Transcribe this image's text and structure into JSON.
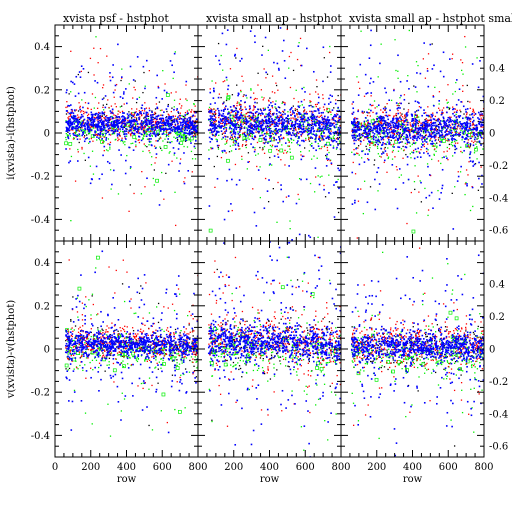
{
  "chart_data": [
    {
      "type": "scatter",
      "title": "xvista psf - hstphot",
      "xlabel": "",
      "ylabel": "i(xvista)-i(hstphot)",
      "xlim": [
        0,
        800
      ],
      "ylim": [
        -0.5,
        0.5
      ],
      "xticks": [],
      "yticks": [
        "-0.4",
        "-0.2",
        "0",
        "0.2",
        "0.4"
      ],
      "center": 0.04,
      "spread": 0.035,
      "slope": -2e-05,
      "series": [
        {
          "color": "#ff0000"
        },
        {
          "color": "#00ee00"
        },
        {
          "color": "#0000ff"
        },
        {
          "color": "#000000"
        }
      ]
    },
    {
      "type": "scatter",
      "title": "xvista small ap - hstphot",
      "xlabel": "",
      "ylabel": "",
      "xlim": [
        0,
        800
      ],
      "ylim": [
        -0.5,
        0.5
      ],
      "xticks": [],
      "yticks": [],
      "center": 0.04,
      "spread": 0.05,
      "slope": -3e-05,
      "series": [
        {
          "color": "#ff0000"
        },
        {
          "color": "#00ee00"
        },
        {
          "color": "#0000ff"
        },
        {
          "color": "#000000"
        }
      ]
    },
    {
      "type": "scatter",
      "title": "xvista small ap - hstphot small ap",
      "xlabel": "",
      "ylabel": "",
      "xlim": [
        0,
        800
      ],
      "ylim": [
        -0.5,
        0.5
      ],
      "xticks": [],
      "yticks": [],
      "right_yticks": [
        "-0.6",
        "-0.4",
        "-0.2",
        "0",
        "0.2",
        "0.4"
      ],
      "center": 0.02,
      "spread": 0.045,
      "slope": 0,
      "series": [
        {
          "color": "#ff0000"
        },
        {
          "color": "#00ee00"
        },
        {
          "color": "#0000ff"
        },
        {
          "color": "#000000"
        }
      ]
    },
    {
      "type": "scatter",
      "title": "",
      "xlabel": "row",
      "ylabel": "v(xvista)-v(hstphot)",
      "xlim": [
        0,
        800
      ],
      "ylim": [
        -0.5,
        0.5
      ],
      "xticks": [
        "0",
        "200",
        "400",
        "600",
        "800"
      ],
      "yticks": [
        "-0.4",
        "-0.2",
        "0",
        "0.2",
        "0.4"
      ],
      "center": 0.02,
      "spread": 0.035,
      "slope": -2e-05,
      "series": [
        {
          "color": "#ff0000"
        },
        {
          "color": "#00ee00"
        },
        {
          "color": "#0000ff"
        },
        {
          "color": "#000000"
        }
      ]
    },
    {
      "type": "scatter",
      "title": "",
      "xlabel": "row",
      "ylabel": "",
      "xlim": [
        0,
        800
      ],
      "ylim": [
        -0.5,
        0.5
      ],
      "xticks": [
        "200",
        "400",
        "600",
        "800"
      ],
      "yticks": [],
      "center": 0.03,
      "spread": 0.05,
      "slope": -3e-05,
      "series": [
        {
          "color": "#ff0000"
        },
        {
          "color": "#00ee00"
        },
        {
          "color": "#0000ff"
        },
        {
          "color": "#000000"
        }
      ]
    },
    {
      "type": "scatter",
      "title": "",
      "xlabel": "row",
      "ylabel": "",
      "xlim": [
        0,
        800
      ],
      "ylim": [
        -0.5,
        0.5
      ],
      "xticks": [
        "200",
        "400",
        "600",
        "800"
      ],
      "yticks": [],
      "right_yticks": [
        "-0.6",
        "-0.4",
        "-0.2",
        "0",
        "0.2",
        "0.4"
      ],
      "center": 0.01,
      "spread": 0.04,
      "slope": 0,
      "series": [
        {
          "color": "#ff0000"
        },
        {
          "color": "#00ee00"
        },
        {
          "color": "#0000ff"
        },
        {
          "color": "#000000"
        }
      ]
    }
  ]
}
